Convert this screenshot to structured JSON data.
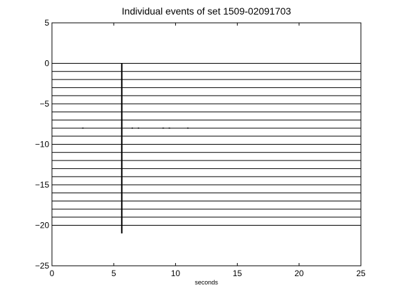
{
  "chart_data": {
    "type": "line",
    "title": "Individual events of set 1509-02091703",
    "xlabel": "seconds",
    "ylabel": "",
    "xlim": [
      0,
      25
    ],
    "ylim": [
      -25,
      5
    ],
    "xticks": [
      0,
      5,
      10,
      15,
      20,
      25
    ],
    "yticks": [
      5,
      0,
      -5,
      -10,
      -15,
      -20,
      -25
    ],
    "grid": false,
    "event_time": 5.65,
    "trace_offsets": [
      0,
      -1,
      -2,
      -3,
      -4,
      -5,
      -6,
      -7,
      -8,
      -9,
      -10,
      -11,
      -12,
      -13,
      -14,
      -15,
      -16,
      -17,
      -18,
      -19,
      -20
    ],
    "trace_x_range": [
      0,
      25
    ],
    "spike_y_range": [
      -21,
      0
    ],
    "noisy_trace_offset": -8,
    "noisy_trace_marks_x": [
      2.5,
      6.5,
      7,
      9,
      9.5,
      11
    ]
  }
}
